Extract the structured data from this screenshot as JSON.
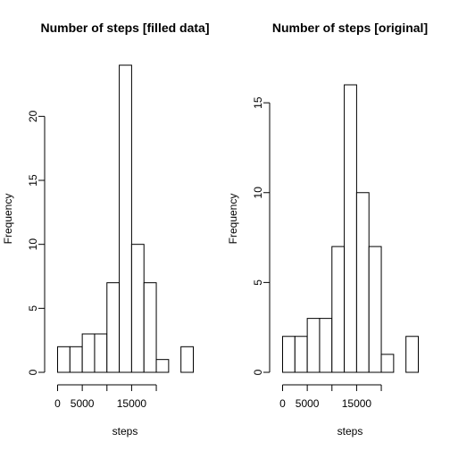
{
  "chart_data": [
    {
      "type": "bar",
      "title": "Number of steps [filled data]",
      "xlabel": "steps",
      "ylabel": "Frequency",
      "bin_width": 2500,
      "x_start": 0,
      "x_ticks": [
        0,
        5000,
        15000
      ],
      "x_tick_labels": [
        "0",
        "5000",
        "15000"
      ],
      "x_axis_extent": [
        0,
        20000
      ],
      "y_ticks": [
        0,
        5,
        10,
        15,
        20
      ],
      "y_tick_labels": [
        "0",
        "5",
        "10",
        "15",
        "20"
      ],
      "ylim": [
        0,
        24
      ],
      "values": [
        2,
        2,
        3,
        3,
        7,
        24,
        10,
        7,
        1,
        0,
        2
      ]
    },
    {
      "type": "bar",
      "title": "Number of steps [original]",
      "xlabel": "steps",
      "ylabel": "Frequency",
      "bin_width": 2500,
      "x_start": 0,
      "x_ticks": [
        0,
        5000,
        15000
      ],
      "x_tick_labels": [
        "0",
        "5000",
        "15000"
      ],
      "x_axis_extent": [
        0,
        20000
      ],
      "y_ticks": [
        0,
        5,
        10,
        15
      ],
      "y_tick_labels": [
        "0",
        "5",
        "10",
        "15"
      ],
      "ylim": [
        0,
        16
      ],
      "values": [
        2,
        2,
        3,
        3,
        7,
        16,
        10,
        7,
        1,
        0,
        2
      ]
    }
  ]
}
